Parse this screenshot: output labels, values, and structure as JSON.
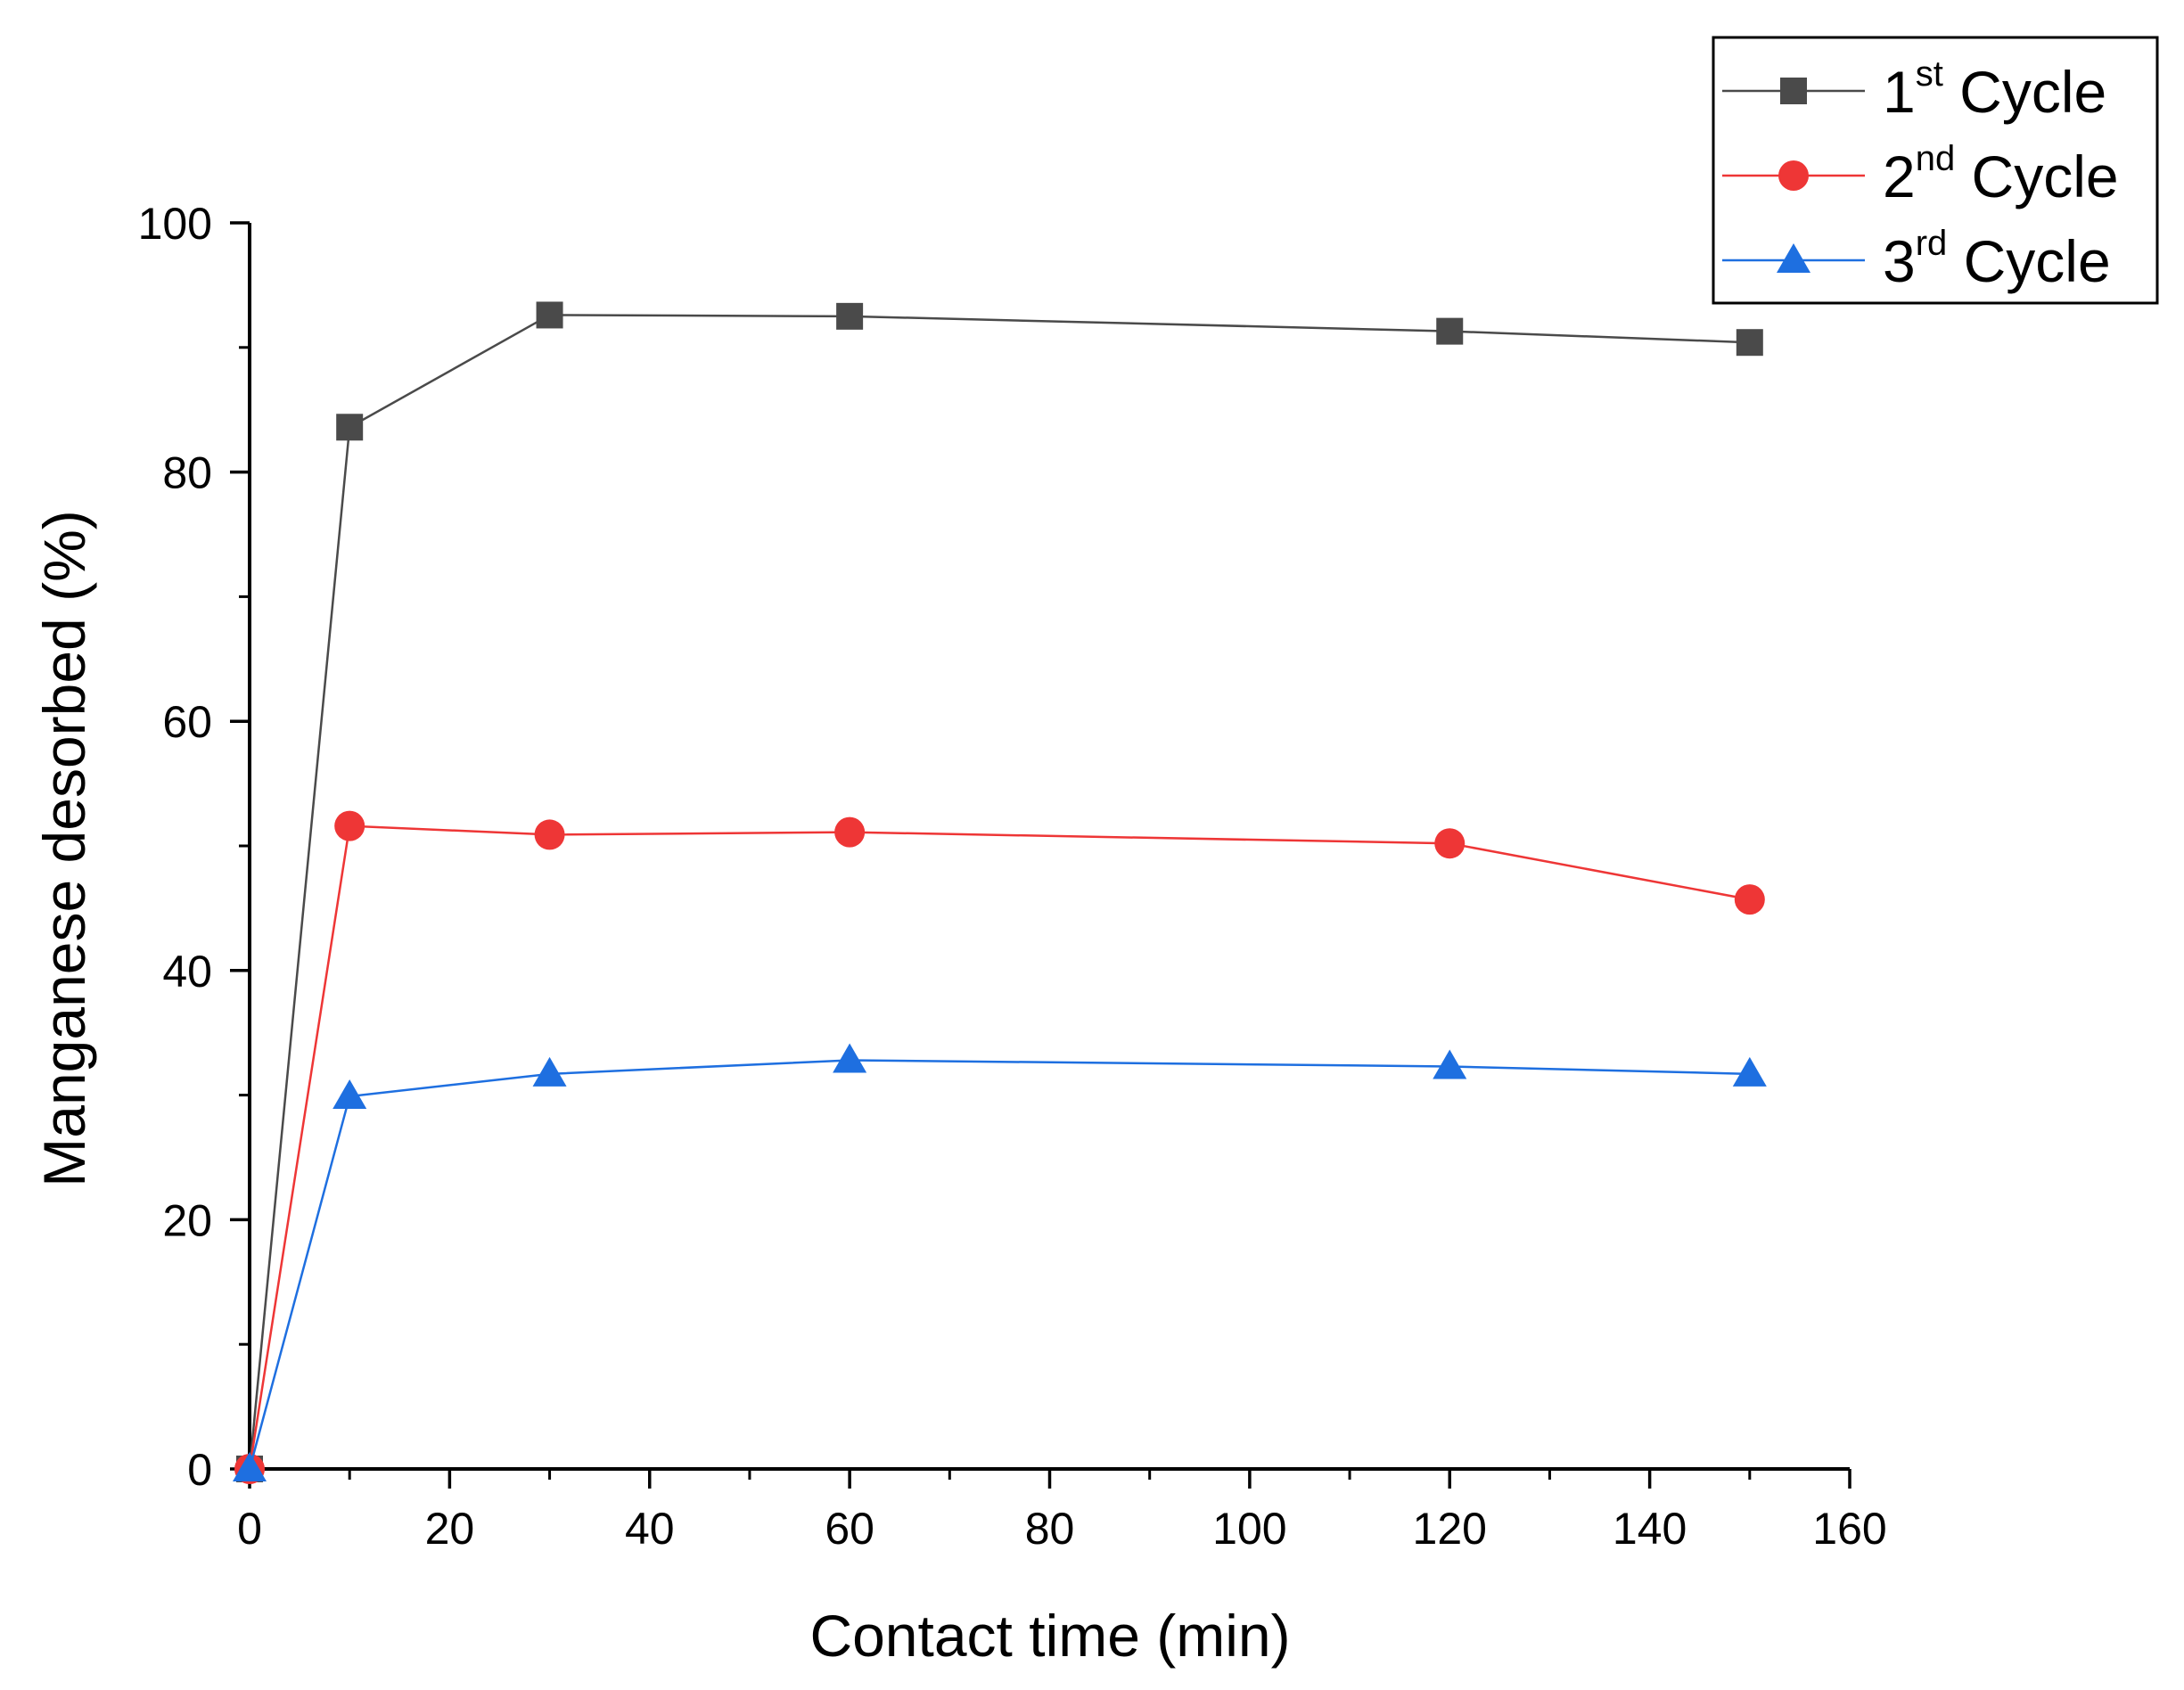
{
  "chart_data": {
    "type": "line",
    "title": "",
    "xlabel": "Contact time (min)",
    "ylabel": "Manganese desorbed (%)",
    "xlim": [
      0,
      160
    ],
    "ylim": [
      0,
      100
    ],
    "x_ticks": [
      0,
      20,
      40,
      60,
      80,
      100,
      120,
      140,
      160
    ],
    "y_ticks": [
      0,
      20,
      40,
      60,
      80,
      100
    ],
    "x_tick_labels": [
      "0",
      "20",
      "40",
      "60",
      "80",
      "100",
      "120",
      "140",
      "160"
    ],
    "y_tick_labels": [
      "0",
      "20",
      "40",
      "60",
      "80",
      "100"
    ],
    "grid": false,
    "legend_position": "top-right",
    "x": [
      0,
      10,
      30,
      60,
      120,
      150
    ],
    "series": [
      {
        "name": "1st Cycle",
        "base": "1",
        "sup": "st",
        "rest": " Cycle",
        "color": "#4a4a4a",
        "marker": "square",
        "values": [
          0,
          83.6,
          92.6,
          92.5,
          91.3,
          90.4
        ]
      },
      {
        "name": "2nd Cycle",
        "base": "2",
        "sup": "nd",
        "rest": " Cycle",
        "color": "#ee3636",
        "marker": "circle",
        "values": [
          0,
          51.6,
          50.9,
          51.1,
          50.2,
          45.7
        ]
      },
      {
        "name": "3rd Cycle",
        "base": "3",
        "sup": "rd",
        "rest": " Cycle",
        "color": "#1e6fe0",
        "marker": "triangle",
        "values": [
          0,
          29.9,
          31.7,
          32.8,
          32.3,
          31.7
        ]
      }
    ]
  }
}
